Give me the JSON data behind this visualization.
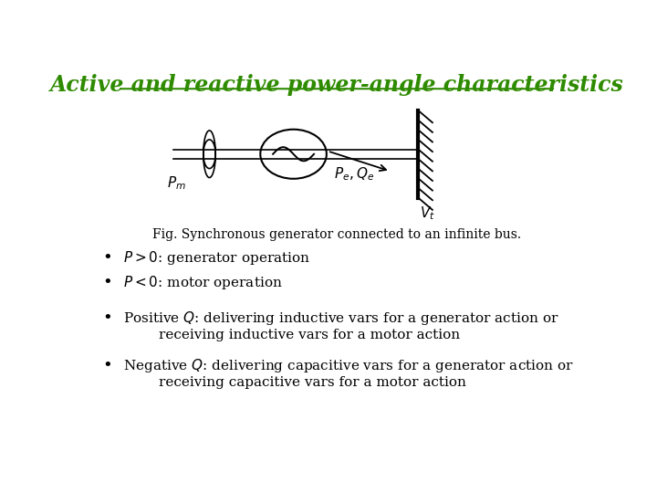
{
  "title": "Active and reactive power-angle characteristics",
  "title_color": "#2E8B00",
  "title_fontsize": 17,
  "fig_caption": "Fig. Synchronous generator connected to an infinite bus.",
  "background_color": "#ffffff",
  "line_color": "#000000"
}
